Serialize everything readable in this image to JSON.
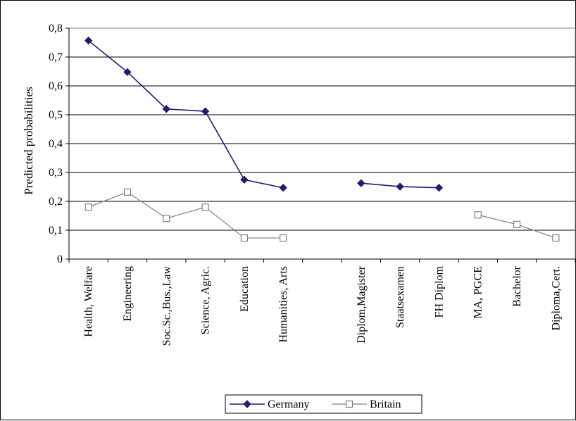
{
  "chart_data": {
    "type": "line",
    "categories": [
      "Health, Welfare",
      "Engineering",
      "Soc.Sc.,Bus.,Law",
      "Science, Agric.",
      "Education",
      "Humanities, Arts",
      "",
      "Diplom,Magister",
      "Staatsexamen",
      "FH Diplom",
      "MA, PGCE",
      "Bachelor",
      "Diploma,Cert."
    ],
    "series": [
      {
        "name": "Germany",
        "color": "#1f1f6b",
        "marker": "diamond",
        "values": [
          0.757,
          0.648,
          0.52,
          0.512,
          0.275,
          0.247,
          null,
          0.263,
          0.251,
          0.247,
          null,
          null,
          null
        ]
      },
      {
        "name": "Britain",
        "color": "#808080",
        "marker": "square-open",
        "values": [
          0.18,
          0.232,
          0.141,
          0.18,
          0.073,
          0.073,
          null,
          null,
          null,
          null,
          0.153,
          0.12,
          0.073
        ]
      }
    ],
    "ylabel": "Predicted probabilities",
    "xlabel": "",
    "ylim": [
      0,
      0.8
    ],
    "yticks": [
      "0",
      "0,1",
      "0,2",
      "0,3",
      "0,4",
      "0,5",
      "0,6",
      "0,7",
      "0,8"
    ],
    "grid": true,
    "legend_position": "bottom"
  }
}
